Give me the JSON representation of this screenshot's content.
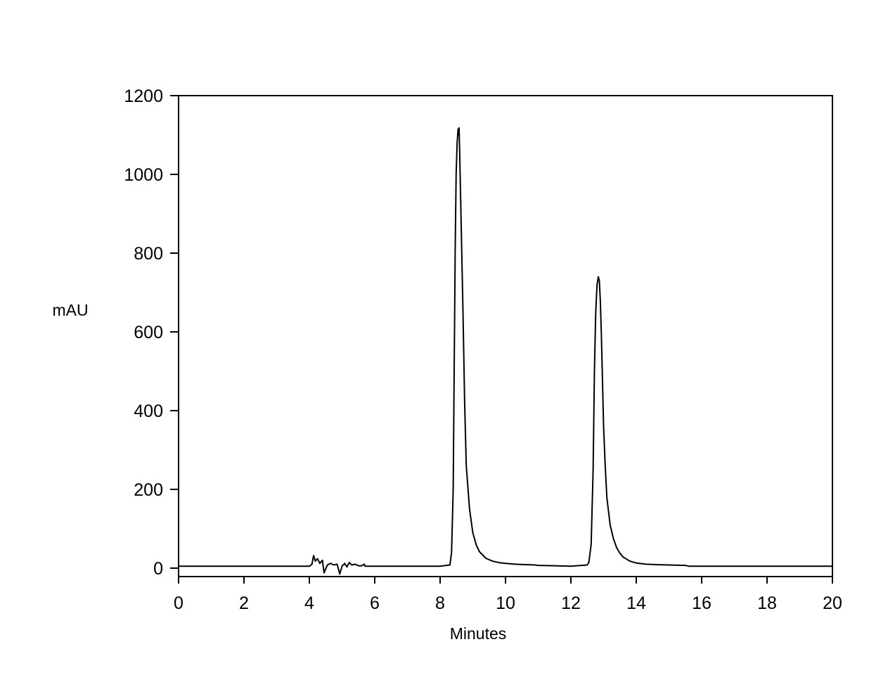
{
  "chart_data": {
    "type": "line",
    "title": "",
    "xlabel": "Minutes",
    "ylabel": "mAU",
    "xlim": [
      0,
      20
    ],
    "ylim": [
      -20,
      1200
    ],
    "x_ticks": [
      "0",
      "2",
      "4",
      "6",
      "8",
      "10",
      "12",
      "14",
      "16",
      "18",
      "20"
    ],
    "y_ticks": [
      "0",
      "200",
      "400",
      "600",
      "800",
      "1000",
      "1200"
    ],
    "grid": false,
    "legend": "none",
    "line_color": "#000000",
    "series": [
      {
        "x": [
          0,
          4.0,
          4.08,
          4.13,
          4.18,
          4.25,
          4.32,
          4.4,
          4.45,
          4.55,
          4.65,
          4.75,
          4.85,
          4.93,
          5.0,
          5.08,
          5.15,
          5.22,
          5.3,
          5.4,
          5.5,
          5.6,
          5.68,
          5.7,
          5.75,
          6.0,
          7.0,
          8.0,
          8.3,
          8.35,
          8.4,
          8.43,
          8.46,
          8.49,
          8.52,
          8.55,
          8.57,
          8.58,
          8.6,
          8.62,
          8.65,
          8.7,
          8.75,
          8.8,
          8.9,
          9.0,
          9.1,
          9.2,
          9.4,
          9.6,
          9.8,
          10.0,
          10.3,
          10.6,
          10.9,
          11.0,
          11.5,
          12.0,
          12.5,
          12.55,
          12.62,
          12.68,
          12.72,
          12.76,
          12.8,
          12.84,
          12.87,
          12.9,
          12.93,
          12.96,
          13.0,
          13.05,
          13.1,
          13.2,
          13.3,
          13.4,
          13.5,
          13.6,
          13.8,
          14.0,
          14.3,
          14.6,
          15.0,
          15.5,
          15.6,
          16.0,
          17.0,
          18.0,
          19.0,
          20.0
        ],
        "y": [
          5,
          5,
          10,
          32,
          18,
          24,
          12,
          20,
          -12,
          8,
          12,
          8,
          10,
          -15,
          5,
          12,
          3,
          14,
          8,
          10,
          6,
          6,
          10,
          5,
          5,
          5,
          5,
          5,
          8,
          40,
          200,
          500,
          800,
          1000,
          1080,
          1115,
          1100,
          1118,
          1050,
          970,
          850,
          650,
          420,
          260,
          150,
          90,
          60,
          42,
          25,
          18,
          14,
          12,
          10,
          9,
          8,
          7,
          6,
          5,
          8,
          15,
          60,
          250,
          500,
          650,
          720,
          740,
          730,
          680,
          600,
          500,
          360,
          260,
          180,
          110,
          75,
          52,
          38,
          28,
          18,
          13,
          10,
          9,
          8,
          7,
          5,
          5,
          5,
          5,
          5,
          5
        ]
      }
    ]
  }
}
